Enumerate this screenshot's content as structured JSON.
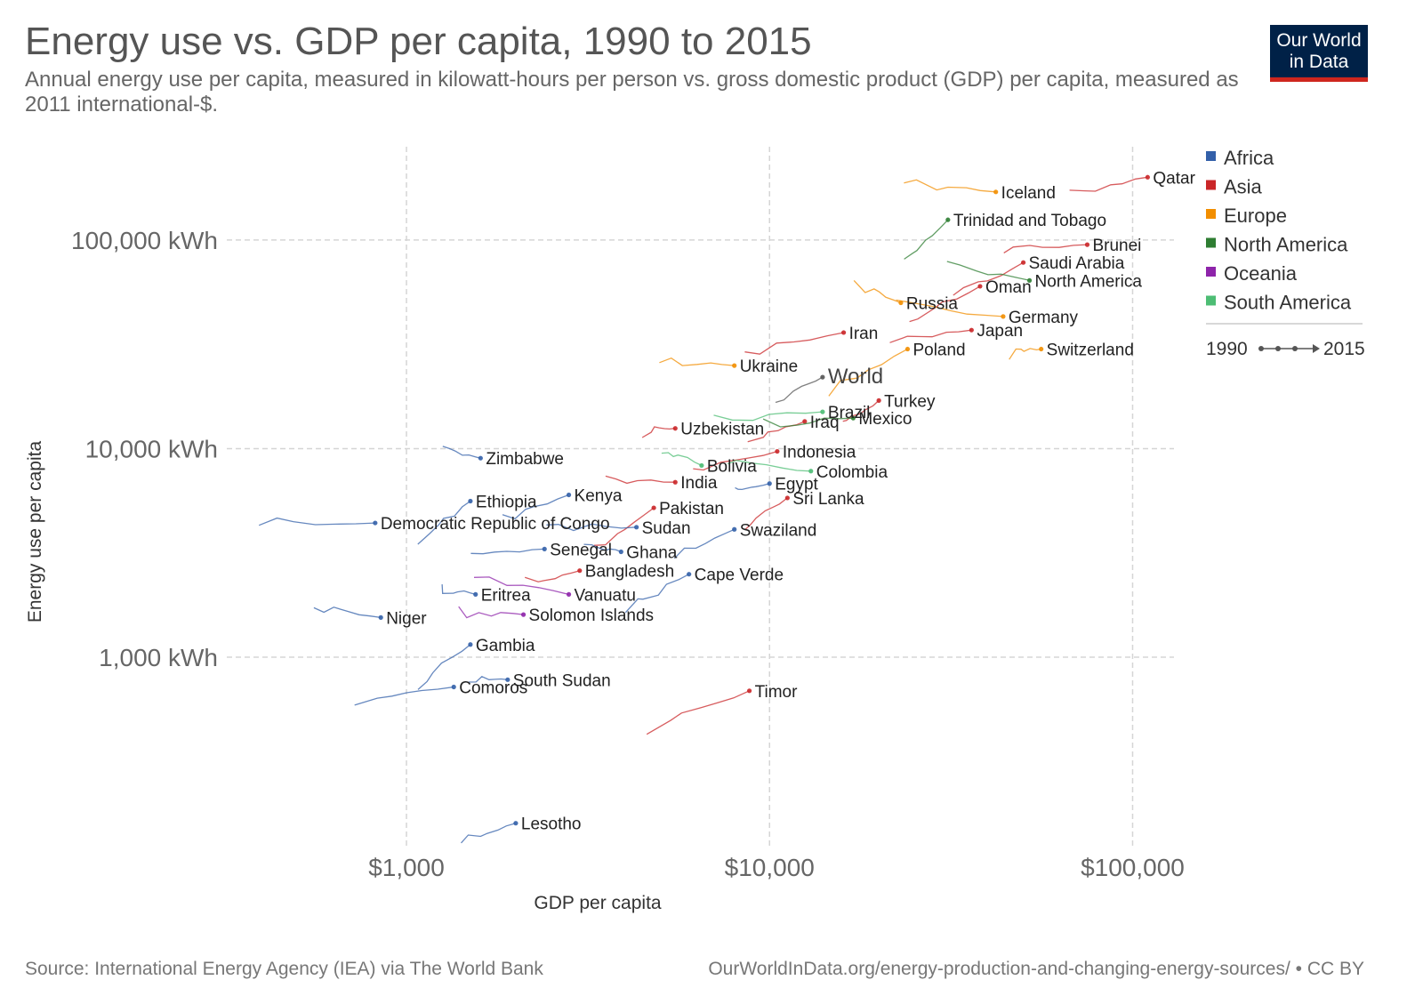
{
  "header": {
    "title": "Energy use vs. GDP per capita, 1990 to 2015",
    "subtitle": "Annual energy use per capita, measured in kilowatt-hours per person vs. gross domestic product (GDP) per capita, measured as 2011 international-$."
  },
  "logo": {
    "line1": "Our World",
    "line2": "in Data"
  },
  "footer": {
    "source": "Source: International Energy Agency (IEA) via The World Bank",
    "link": "OurWorldInData.org/energy-production-and-changing-energy-sources/ • CC BY"
  },
  "chart_data": {
    "type": "scatter",
    "title": "Energy use vs. GDP per capita, 1990 to 2015",
    "xlabel": "GDP per capita",
    "ylabel": "Energy use per capita",
    "x_scale": "log",
    "y_scale": "log",
    "xlim": [
      320,
      130000
    ],
    "ylim": [
      120,
      280000
    ],
    "x_ticks": [
      {
        "value": 1000,
        "label": "$1,000"
      },
      {
        "value": 10000,
        "label": "$10,000"
      },
      {
        "value": 100000,
        "label": "$100,000"
      }
    ],
    "y_ticks": [
      {
        "value": 1000,
        "label": "1,000 kWh"
      },
      {
        "value": 10000,
        "label": "10,000 kWh"
      },
      {
        "value": 100000,
        "label": "100,000 kWh"
      }
    ],
    "grid": true,
    "legend_placement": "right",
    "legend": [
      {
        "name": "Africa",
        "color": "#3360a9"
      },
      {
        "name": "Asia",
        "color": "#ca2628"
      },
      {
        "name": "Europe",
        "color": "#f28e00"
      },
      {
        "name": "North America",
        "color": "#2e7d32"
      },
      {
        "name": "Oceania",
        "color": "#8e24aa"
      },
      {
        "name": "South America",
        "color": "#4dbd74"
      }
    ],
    "time_legend": {
      "start": "1990",
      "end": "2015"
    },
    "points": [
      {
        "name": "Qatar",
        "region": "Asia",
        "x": 110000,
        "y": 200000
      },
      {
        "name": "Iceland",
        "region": "Europe",
        "x": 42000,
        "y": 170000
      },
      {
        "name": "Trinidad and Tobago",
        "region": "North America",
        "x": 31000,
        "y": 125000
      },
      {
        "name": "Brunei",
        "region": "Asia",
        "x": 75000,
        "y": 95000
      },
      {
        "name": "Saudi Arabia",
        "region": "Asia",
        "x": 50000,
        "y": 78000
      },
      {
        "name": "North America",
        "region": "North America",
        "x": 52000,
        "y": 64000
      },
      {
        "name": "Oman",
        "region": "Asia",
        "x": 38000,
        "y": 60000
      },
      {
        "name": "Russia",
        "region": "Europe",
        "x": 23000,
        "y": 50000
      },
      {
        "name": "Germany",
        "region": "Europe",
        "x": 44000,
        "y": 43000
      },
      {
        "name": "Iran",
        "region": "Asia",
        "x": 16000,
        "y": 36000
      },
      {
        "name": "Japan",
        "region": "Asia",
        "x": 36000,
        "y": 37000
      },
      {
        "name": "Poland",
        "region": "Europe",
        "x": 24000,
        "y": 30000
      },
      {
        "name": "Switzerland",
        "region": "Europe",
        "x": 56000,
        "y": 30000
      },
      {
        "name": "World",
        "region": "",
        "x": 14000,
        "y": 22000
      },
      {
        "name": "Ukraine",
        "region": "Europe",
        "x": 8000,
        "y": 25000
      },
      {
        "name": "Turkey",
        "region": "Asia",
        "x": 20000,
        "y": 17000
      },
      {
        "name": "Brazil",
        "region": "South America",
        "x": 14000,
        "y": 15000
      },
      {
        "name": "Iraq",
        "region": "Asia",
        "x": 12500,
        "y": 13500
      },
      {
        "name": "Mexico",
        "region": "North America",
        "x": 17000,
        "y": 14000
      },
      {
        "name": "Uzbekistan",
        "region": "Asia",
        "x": 5500,
        "y": 12500
      },
      {
        "name": "Indonesia",
        "region": "Asia",
        "x": 10500,
        "y": 9700
      },
      {
        "name": "Bolivia",
        "region": "South America",
        "x": 6500,
        "y": 8300
      },
      {
        "name": "Colombia",
        "region": "South America",
        "x": 13000,
        "y": 7800
      },
      {
        "name": "Zimbabwe",
        "region": "Africa",
        "x": 1600,
        "y": 9000
      },
      {
        "name": "India",
        "region": "Asia",
        "x": 5500,
        "y": 6900
      },
      {
        "name": "Egypt",
        "region": "Africa",
        "x": 10000,
        "y": 6800
      },
      {
        "name": "Kenya",
        "region": "Africa",
        "x": 2800,
        "y": 6000
      },
      {
        "name": "Sri Lanka",
        "region": "Asia",
        "x": 11200,
        "y": 5800
      },
      {
        "name": "Ethiopia",
        "region": "Africa",
        "x": 1500,
        "y": 5600
      },
      {
        "name": "Pakistan",
        "region": "Asia",
        "x": 4800,
        "y": 5200
      },
      {
        "name": "Democratic Republic of Congo",
        "region": "Africa",
        "x": 820,
        "y": 4400
      },
      {
        "name": "Sudan",
        "region": "Africa",
        "x": 4300,
        "y": 4200
      },
      {
        "name": "Swaziland",
        "region": "Africa",
        "x": 8000,
        "y": 4100
      },
      {
        "name": "Senegal",
        "region": "Africa",
        "x": 2400,
        "y": 3300
      },
      {
        "name": "Ghana",
        "region": "Africa",
        "x": 3900,
        "y": 3200
      },
      {
        "name": "Bangladesh",
        "region": "Asia",
        "x": 3000,
        "y": 2600
      },
      {
        "name": "Cape Verde",
        "region": "Africa",
        "x": 6000,
        "y": 2500
      },
      {
        "name": "Eritrea",
        "region": "Africa",
        "x": 1550,
        "y": 2000
      },
      {
        "name": "Vanuatu",
        "region": "Oceania",
        "x": 2800,
        "y": 2000
      },
      {
        "name": "Solomon Islands",
        "region": "Oceania",
        "x": 2100,
        "y": 1600
      },
      {
        "name": "Niger",
        "region": "Africa",
        "x": 850,
        "y": 1550
      },
      {
        "name": "Gambia",
        "region": "Africa",
        "x": 1500,
        "y": 1150
      },
      {
        "name": "South Sudan",
        "region": "Africa",
        "x": 1900,
        "y": 780
      },
      {
        "name": "Comoros",
        "region": "Africa",
        "x": 1350,
        "y": 720
      },
      {
        "name": "Timor",
        "region": "Asia",
        "x": 8800,
        "y": 690
      },
      {
        "name": "Lesotho",
        "region": "Africa",
        "x": 2000,
        "y": 160
      }
    ]
  }
}
